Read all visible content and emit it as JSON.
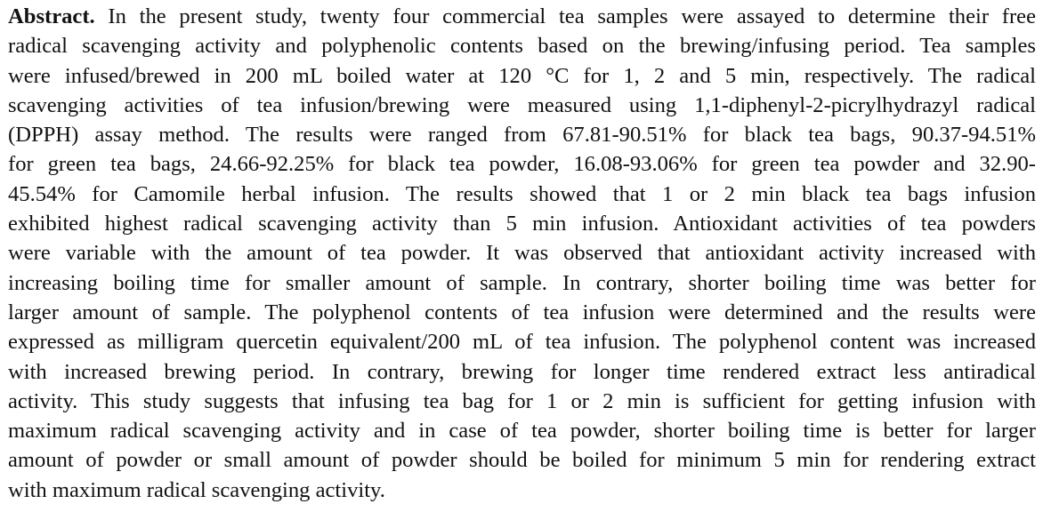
{
  "abstract": {
    "label": "Abstract.",
    "lines": [
      "In the present study, twenty four commercial tea samples were assayed to determine their free",
      "radical scavenging activity and polyphenolic contents based on the brewing/infusing period. Tea samples",
      "were infused/brewed in 200 mL boiled water at 120 °C for 1, 2 and 5 min, respectively. The radical",
      "scavenging activities of tea infusion/brewing were measured using 1,1-diphenyl-2-picrylhydrazyl radical",
      "(DPPH) assay method. The results were ranged from 67.81-90.51% for black tea bags, 90.37-94.51%",
      "for green tea bags, 24.66-92.25% for black tea powder, 16.08-93.06% for green tea powder and 32.90-",
      "45.54% for Camomile herbal infusion. The results showed that 1 or 2 min black tea bags infusion",
      "exhibited highest radical scavenging activity than 5 min infusion. Antioxidant activities of tea powders",
      "were variable with the amount of tea powder. It was observed that antioxidant activity increased with",
      "increasing boiling time for smaller amount of sample. In contrary, shorter boiling time was better for",
      "larger amount of sample. The polyphenol contents of tea infusion were determined and the results were",
      "expressed as milligram quercetin equivalent/200 mL of tea infusion. The polyphenol content was increased",
      "with increased brewing period. In contrary, brewing for longer time rendered extract less antiradical",
      "activity. This study suggests that infusing tea bag for 1 or 2 min is sufficient for getting infusion with",
      "maximum radical scavenging activity and in case of tea powder, shorter boiling time is better for larger",
      "amount of powder or small amount of powder should be boiled for minimum 5 min for rendering extract",
      "with maximum radical scavenging activity."
    ]
  }
}
